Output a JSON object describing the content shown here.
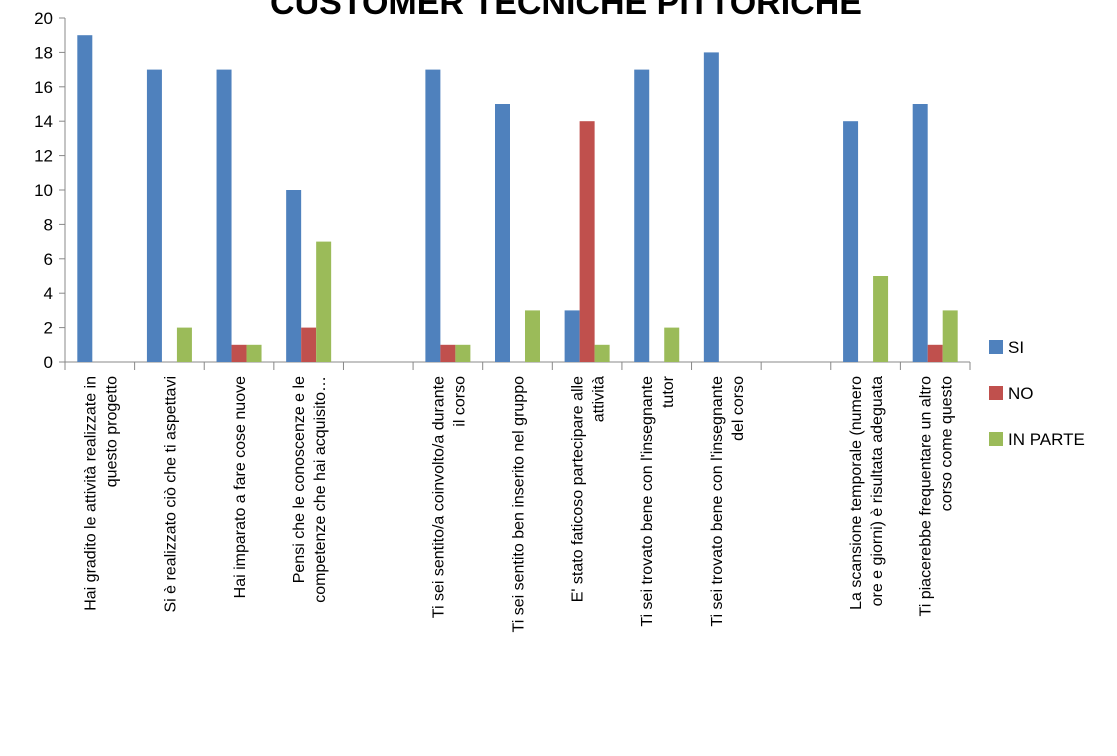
{
  "chart_data": {
    "type": "bar",
    "title": "CUSTOMER TECNICHE PITTORICHE",
    "ylim": [
      0,
      20
    ],
    "yticks": [
      "0",
      "2",
      "4",
      "6",
      "8",
      "10",
      "12",
      "14",
      "16",
      "18",
      "20"
    ],
    "grid": false,
    "legend_position": "right",
    "categories": [
      [
        "Hai gradito le attività realizzate in",
        "questo progetto"
      ],
      [
        "Si è realizzato ciò che ti aspettavi"
      ],
      [
        "Hai imparato a fare cose nuove"
      ],
      [
        "Pensi che le conoscenze e le",
        "competenze che hai acquisito…"
      ],
      [
        ""
      ],
      [
        "Ti sei  sentito/a coinvolto/a durante",
        "il corso"
      ],
      [
        "Ti sei sentito ben inserito nel gruppo"
      ],
      [
        "E' stato faticoso partecipare alle",
        "attività"
      ],
      [
        "Ti sei trovato bene con l'insegnante",
        "tutor"
      ],
      [
        "Ti sei trovato bene con l'insegnante",
        "del corso"
      ],
      [
        ""
      ],
      [
        "La scansione temporale (numero",
        "ore e giorni) è risultata adeguata"
      ],
      [
        "Ti piacerebbe frequentare un altro",
        "corso come questo"
      ]
    ],
    "series": [
      {
        "name": "SI",
        "color": "#4F81BD",
        "values": [
          19,
          17,
          17,
          10,
          0,
          17,
          15,
          3,
          17,
          18,
          0,
          14,
          15
        ]
      },
      {
        "name": "NO",
        "color": "#C0504D",
        "values": [
          0,
          0,
          1,
          2,
          0,
          1,
          0,
          14,
          0,
          0,
          0,
          0,
          1
        ]
      },
      {
        "name": "IN PARTE",
        "color": "#9BBB59",
        "values": [
          0,
          2,
          1,
          7,
          0,
          1,
          3,
          1,
          2,
          0,
          0,
          5,
          3
        ]
      }
    ]
  }
}
